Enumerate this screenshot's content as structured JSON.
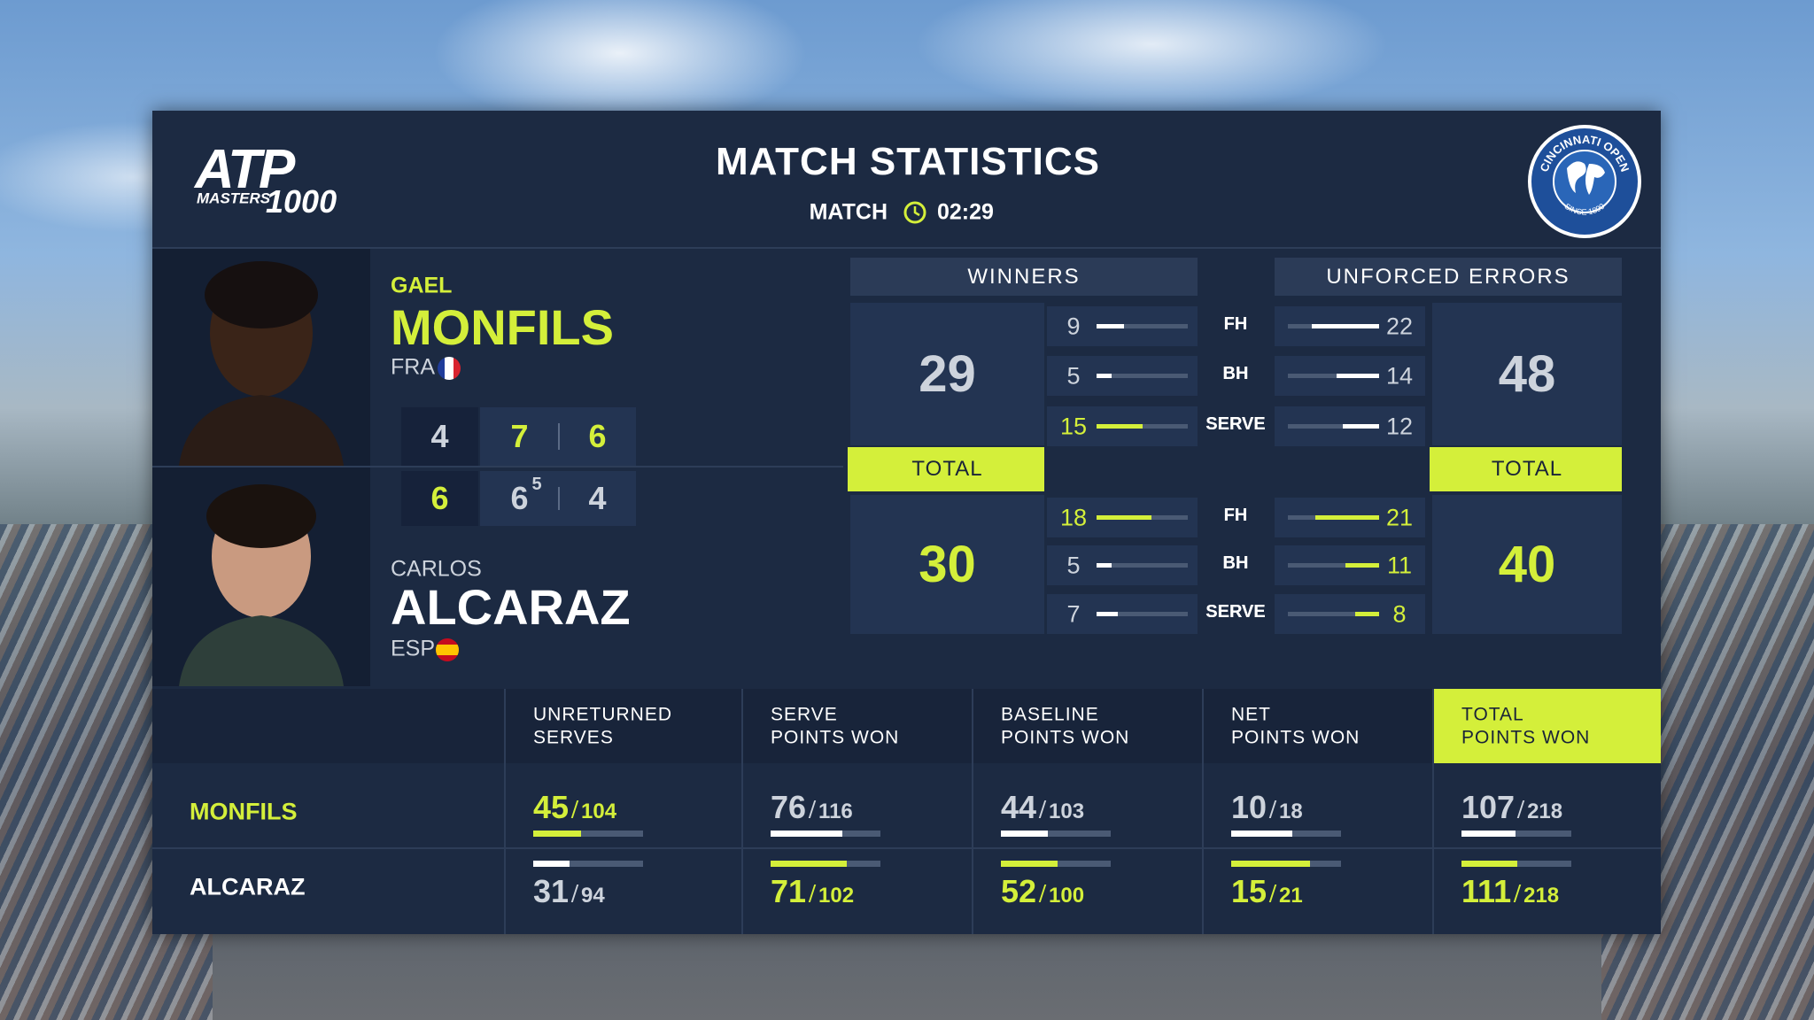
{
  "header": {
    "logo": {
      "brand": "ATP",
      "series": "MASTERS",
      "level": "1000"
    },
    "title": "MATCH STATISTICS",
    "match_label": "MATCH",
    "match_time": "02:29",
    "tournament_logo": {
      "name": "CINCINNATI OPEN",
      "since": "SINCE 1899"
    }
  },
  "players": [
    {
      "first_name": "GAEL",
      "last_name": "MONFILS",
      "country": "FRA",
      "sets": [
        {
          "games": 4
        },
        {
          "games": 7
        },
        {
          "games": 6
        }
      ]
    },
    {
      "first_name": "CARLOS",
      "last_name": "ALCARAZ",
      "country": "ESP",
      "sets": [
        {
          "games": 6
        },
        {
          "games": 6,
          "tiebreak": 5
        },
        {
          "games": 4
        }
      ]
    }
  ],
  "winners": {
    "title": "WINNERS",
    "total_label": "TOTAL",
    "strokes": [
      "FH",
      "BH",
      "SERVE"
    ],
    "players": [
      {
        "total": 29,
        "by_stroke": [
          9,
          5,
          15
        ]
      },
      {
        "total": 30,
        "by_stroke": [
          18,
          5,
          7
        ]
      }
    ]
  },
  "unforced_errors": {
    "title": "UNFORCED ERRORS",
    "total_label": "TOTAL",
    "players": [
      {
        "total": 48,
        "by_stroke": [
          22,
          14,
          12
        ]
      },
      {
        "total": 40,
        "by_stroke": [
          21,
          11,
          8
        ]
      }
    ]
  },
  "table": {
    "columns": [
      [
        "UNRETURNED",
        "SERVES"
      ],
      [
        "SERVE",
        "POINTS WON"
      ],
      [
        "BASELINE",
        "POINTS WON"
      ],
      [
        "NET",
        "POINTS WON"
      ],
      [
        "TOTAL",
        "POINTS WON"
      ]
    ],
    "rows": [
      {
        "name": "MONFILS",
        "cells": [
          {
            "won": 45,
            "total": 104
          },
          {
            "won": 76,
            "total": 116
          },
          {
            "won": 44,
            "total": 103
          },
          {
            "won": 10,
            "total": 18
          },
          {
            "won": 107,
            "total": 218
          }
        ]
      },
      {
        "name": "ALCARAZ",
        "cells": [
          {
            "won": 31,
            "total": 94
          },
          {
            "won": 71,
            "total": 102
          },
          {
            "won": 52,
            "total": 100
          },
          {
            "won": 15,
            "total": 21
          },
          {
            "won": 111,
            "total": 218
          }
        ]
      }
    ]
  }
}
